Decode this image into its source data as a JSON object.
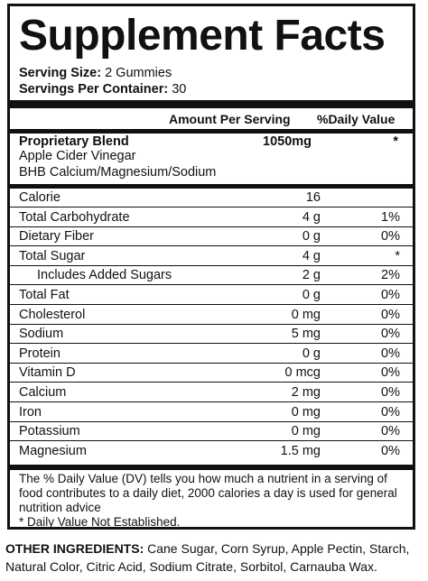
{
  "title": "Supplement Facts",
  "serving": {
    "size_label": "Serving Size:",
    "size_value": "2 Gummies",
    "per_container_label": "Servings Per Container:",
    "per_container_value": "30"
  },
  "header": {
    "amount_label": "Amount Per Serving",
    "dv_label": "%Daily Value"
  },
  "blend": {
    "name": "Proprietary Blend",
    "amount": "1050mg",
    "dv": "*",
    "ingredients": [
      "Apple Cider Vinegar",
      "BHB Calcium/Magnesium/Sodium"
    ]
  },
  "rows": [
    {
      "name": "Calorie",
      "amount": "16",
      "dv": ""
    },
    {
      "name": "Total Carbohydrate",
      "amount": "4 g",
      "dv": "1%"
    },
    {
      "name": "Dietary Fiber",
      "amount": "0 g",
      "dv": "0%"
    },
    {
      "name": "Total Sugar",
      "amount": "4 g",
      "dv": "*"
    },
    {
      "name": "Includes Added Sugars",
      "amount": "2 g",
      "dv": "2%"
    },
    {
      "name": "Total Fat",
      "amount": "0 g",
      "dv": "0%"
    },
    {
      "name": "Cholesterol",
      "amount": "0 mg",
      "dv": "0%"
    },
    {
      "name": "Sodium",
      "amount": "5 mg",
      "dv": "0%"
    },
    {
      "name": "Protein",
      "amount": "0 g",
      "dv": "0%"
    },
    {
      "name": "Vitamin D",
      "amount": "0 mcg",
      "dv": "0%"
    },
    {
      "name": "Calcium",
      "amount": "2 mg",
      "dv": "0%"
    },
    {
      "name": "Iron",
      "amount": "0 mg",
      "dv": "0%"
    },
    {
      "name": "Potassium",
      "amount": "0 mg",
      "dv": "0%"
    },
    {
      "name": "Magnesium",
      "amount": "1.5 mg",
      "dv": "0%"
    }
  ],
  "footnote": {
    "dv_text": "The % Daily Value (DV) tells you how much a nutrient in a serving of food contributes to a daily diet, 2000 calories a day is used for general nutrition advice",
    "not_established": "* Daily Value Not Established."
  },
  "other_ingredients": {
    "label": "OTHER INGREDIENTS:",
    "text": "Cane Sugar, Corn Syrup, Apple Pectin, Starch, Natural Color, Citric Acid, Sodium Citrate, Sorbitol, Carnauba Wax."
  }
}
